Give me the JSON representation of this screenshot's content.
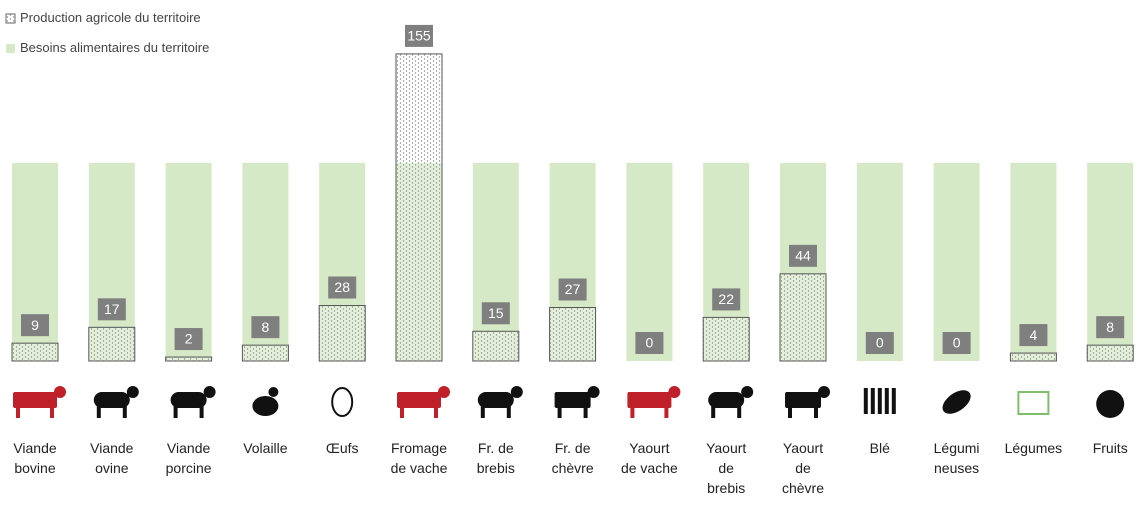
{
  "chart_data": {
    "type": "bar",
    "categories": [
      "Viande\nbovine",
      "Viande\novine",
      "Viande\nporcine",
      "Volaille",
      "Œufs",
      "Fromage\nde vache",
      "Fr. de\nbrebis",
      "Fr. de\nchèvre",
      "Yaourt\nde vache",
      "Yaourt\nde\nbrebis",
      "Yaourt\nde\nchèvre",
      "Blé",
      "Légumi\nneuses",
      "Légumes",
      "Fruits"
    ],
    "series": [
      {
        "name": "Besoins alimentaires du territoire",
        "color": "#d6e9c6",
        "values": [
          100,
          100,
          100,
          100,
          100,
          100,
          100,
          100,
          100,
          100,
          100,
          100,
          100,
          100,
          100
        ]
      },
      {
        "name": "Production agricole du territoire",
        "color": "#7f7f7f",
        "values": [
          9,
          17,
          2,
          8,
          28,
          155,
          15,
          27,
          0,
          22,
          44,
          0,
          0,
          4,
          8
        ]
      }
    ],
    "ylim": [
      0,
      160
    ],
    "legend": "top-left"
  }
}
